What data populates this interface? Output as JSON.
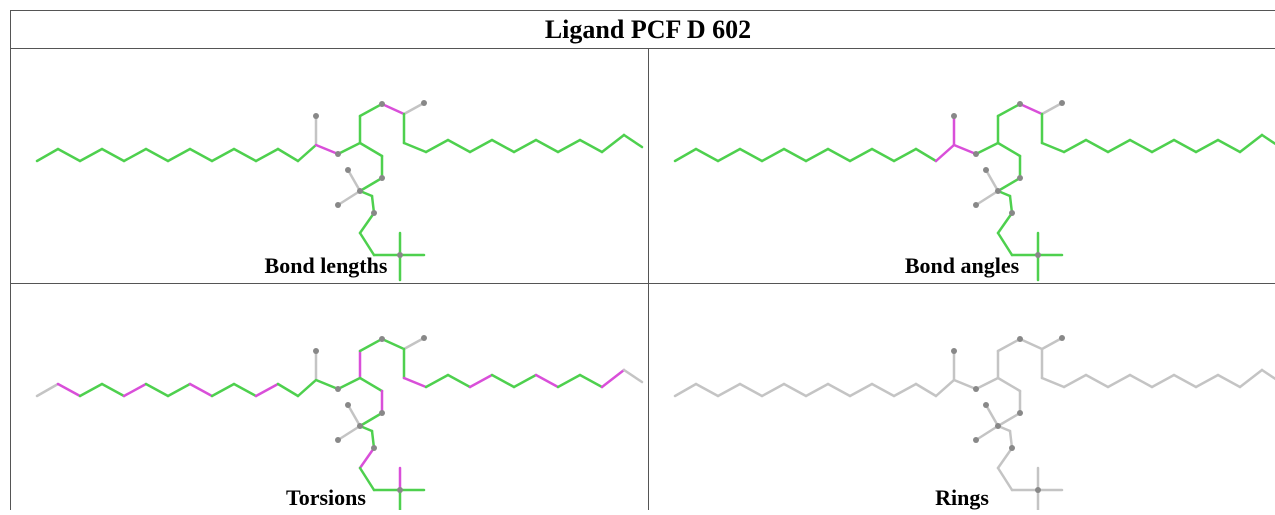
{
  "table": {
    "title": "Ligand PCF D 602",
    "cells": [
      {
        "caption": "Bond lengths"
      },
      {
        "caption": "Bond angles"
      },
      {
        "caption": "Torsions"
      },
      {
        "caption": "Rings"
      }
    ]
  }
}
